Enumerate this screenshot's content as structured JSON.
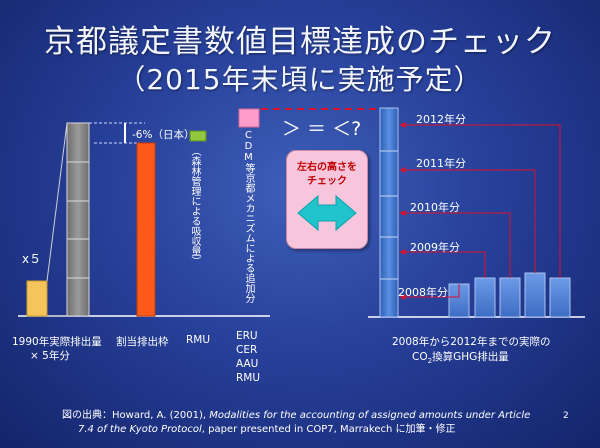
{
  "title": {
    "line1": "京都議定書数値目標達成のチェック",
    "line2": "（2015年末頃に実施予定）"
  },
  "left": {
    "x5_label": "x５",
    "base_bar_label_line1": "1990年実際排出量",
    "base_bar_label_line2": "× 5年分",
    "assigned_label": "割当排出枠",
    "reduction_label": "-6%（日本）",
    "rmu_label": "RMU",
    "rmu_note": "（森林管理による吸収量）",
    "credit_note": "CDM等京都メカニズムによる追加分",
    "credit_types": [
      "ERU",
      "CER",
      "AAU",
      "RMU"
    ]
  },
  "compare": {
    "operators": "＞ ＝ ＜?",
    "callout_line1": "左右の高さを",
    "callout_line2": "チェック"
  },
  "right": {
    "years": [
      "2012年分",
      "2011年分",
      "2010年分",
      "2009年分",
      "2008年分"
    ],
    "caption_line1": "2008年から2012年までの実際の",
    "caption_line2_pre": "CO",
    "caption_line2_sub": "2",
    "caption_line2_post": "換算GHG排出量"
  },
  "citation": {
    "prefix": "図の出典：Howard, A. (2001), ",
    "italic1": "Modalities for the accounting of assigned amounts under Article",
    "italic2": "7.4 of the Kyoto Protocol",
    "suffix": ", paper presented in COP7, Marrakech に加筆・修正"
  },
  "page_number": "2",
  "colors": {
    "orange": "#ff5a1a",
    "gold": "#f5c45a",
    "green": "#92c83e",
    "pink": "#ff9ccb",
    "stack_grey": "#808080",
    "blue_column": "#4a7fd0",
    "arrow_red": "#e0102a",
    "cyan_arrow": "#21c3cc"
  }
}
